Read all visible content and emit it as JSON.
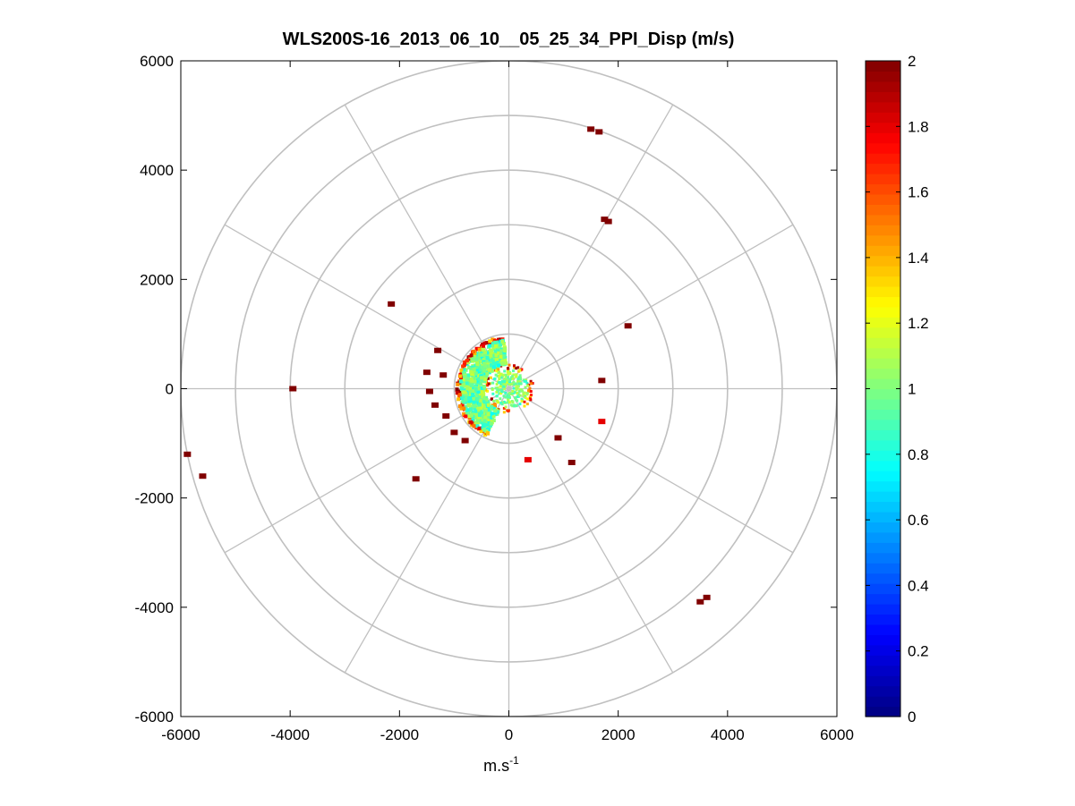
{
  "chart_data": {
    "type": "scatter",
    "subtype": "polar-ppi",
    "title": "WLS200S-16_2013_06_10__05_25_34_PPI_Disp (m/s)",
    "xlabel": "m.s",
    "xlabel_sup": "-1",
    "ylabel": "",
    "xlim": [
      -6000,
      6000
    ],
    "ylim": [
      -6000,
      6000
    ],
    "xticks": [
      -6000,
      -4000,
      -2000,
      0,
      2000,
      4000,
      6000
    ],
    "yticks": [
      6000,
      4000,
      2000,
      0,
      -2000,
      -4000,
      -6000
    ],
    "polar_grid": {
      "rings": [
        1000,
        2000,
        3000,
        4000,
        5000,
        6000
      ],
      "spokes_deg": [
        0,
        30,
        60,
        90,
        120,
        150,
        180,
        210,
        240,
        270,
        300,
        330
      ],
      "grid": true
    },
    "colorbar": {
      "colormap": "jet",
      "range": [
        0,
        2
      ],
      "ticks": [
        "2",
        "1.8",
        "1.6",
        "1.4",
        "1.2",
        "1",
        "0.8",
        "0.6",
        "0.4",
        "0.2",
        "0"
      ]
    },
    "features": {
      "near_field_ring": {
        "r_min": 80,
        "r_max": 450,
        "azimuth_range": [
          0,
          360
        ],
        "value": 1.0
      },
      "dense_sector": {
        "center": [
          -650,
          50
        ],
        "r_min": 450,
        "r_max": 950,
        "azimuth_range": [
          190,
          360
        ],
        "value": 0.95
      }
    },
    "points": [
      {
        "x": 1500,
        "y": 4750,
        "v": 2.0
      },
      {
        "x": 1650,
        "y": 4700,
        "v": 2.0
      },
      {
        "x": 1750,
        "y": 3100,
        "v": 2.0
      },
      {
        "x": 1820,
        "y": 3060,
        "v": 2.0
      },
      {
        "x": 2180,
        "y": 1150,
        "v": 2.0
      },
      {
        "x": -2150,
        "y": 1550,
        "v": 2.0
      },
      {
        "x": -3950,
        "y": 0,
        "v": 2.0
      },
      {
        "x": -5880,
        "y": -1200,
        "v": 2.0
      },
      {
        "x": -5600,
        "y": -1600,
        "v": 2.0
      },
      {
        "x": -1700,
        "y": -1650,
        "v": 2.0
      },
      {
        "x": 3500,
        "y": -3900,
        "v": 2.0
      },
      {
        "x": 3620,
        "y": -3820,
        "v": 2.0
      },
      {
        "x": -1500,
        "y": 300,
        "v": 2.0
      },
      {
        "x": -1450,
        "y": -50,
        "v": 2.0
      },
      {
        "x": -1350,
        "y": -300,
        "v": 2.0
      },
      {
        "x": -1200,
        "y": 250,
        "v": 2.0
      },
      {
        "x": -1150,
        "y": -500,
        "v": 2.0
      },
      {
        "x": -1000,
        "y": -800,
        "v": 2.0
      },
      {
        "x": -800,
        "y": -950,
        "v": 2.0
      },
      {
        "x": -1300,
        "y": 700,
        "v": 2.0
      },
      {
        "x": 900,
        "y": -900,
        "v": 2.0
      },
      {
        "x": 1150,
        "y": -1350,
        "v": 2.0
      },
      {
        "x": 1700,
        "y": 150,
        "v": 2.0
      },
      {
        "x": 1700,
        "y": -600,
        "v": 1.8
      },
      {
        "x": 350,
        "y": -1300,
        "v": 1.8
      }
    ]
  }
}
